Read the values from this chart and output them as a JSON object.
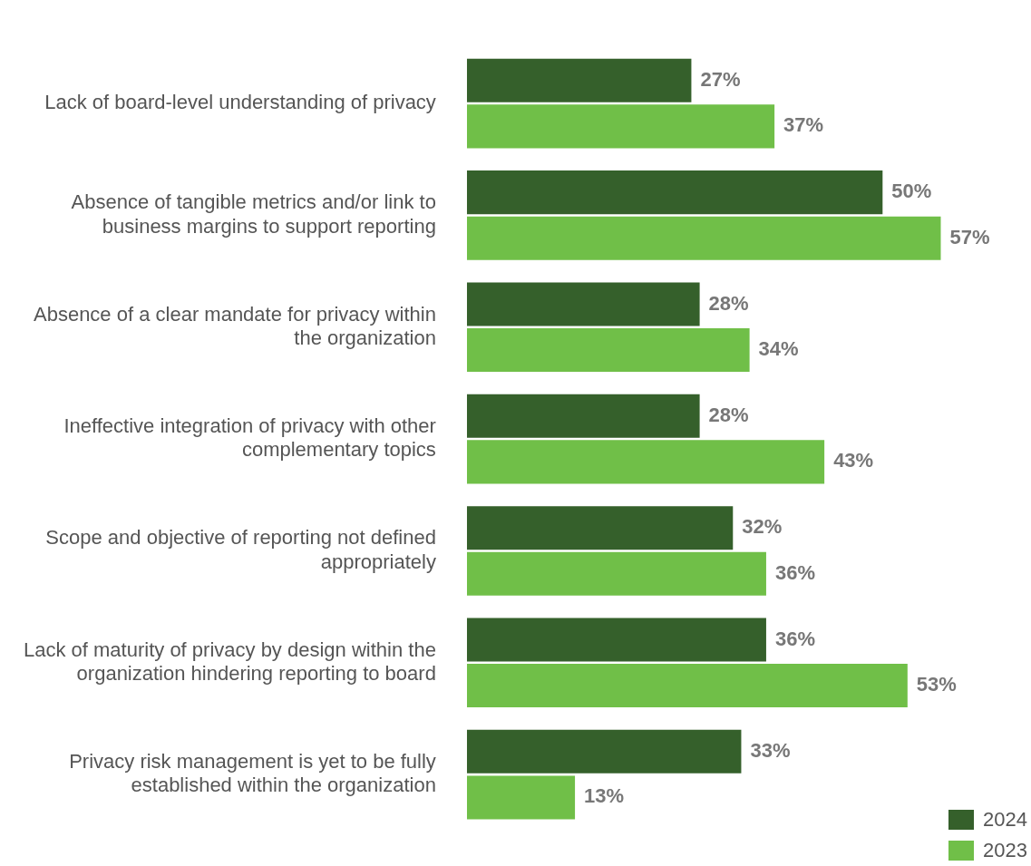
{
  "chart_data": {
    "type": "bar",
    "orientation": "horizontal",
    "categories": [
      "Lack of board-level understanding of privacy",
      "Absence of tangible metrics and/or link to business margins to support reporting",
      "Absence of a clear mandate for privacy within the organization",
      "Ineffective integration of privacy with other complementary topics",
      "Scope and objective of reporting not defined appropriately",
      "Lack of maturity of privacy by design within the organization hindering reporting to board",
      "Privacy risk management is yet to be fully established within the organization"
    ],
    "series": [
      {
        "name": "2024",
        "color": "#35602b",
        "values": [
          27,
          50,
          28,
          28,
          32,
          36,
          33
        ],
        "value_labels": [
          "27%",
          "50%",
          "28%",
          "28%",
          "32%",
          "36%",
          "33%"
        ]
      },
      {
        "name": "2023",
        "color": "#70bf48",
        "values": [
          37,
          57,
          34,
          43,
          36,
          53,
          13
        ],
        "value_labels": [
          "37%",
          "57%",
          "34%",
          "43%",
          "36%",
          "53%",
          "13%"
        ]
      }
    ],
    "legend": "bottom right"
  }
}
